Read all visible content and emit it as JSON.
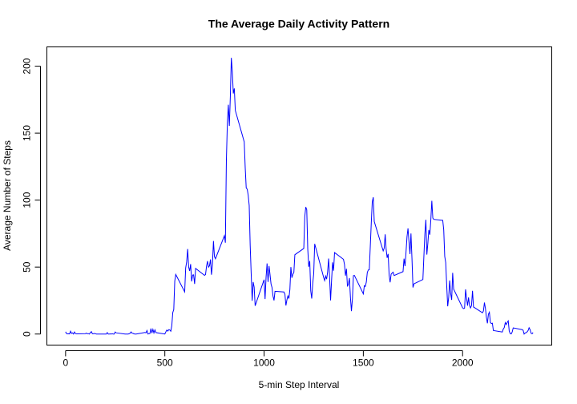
{
  "chart_data": {
    "type": "line",
    "title": "The Average Daily Activity Pattern",
    "x_label": "5-min Step Interval",
    "y_label": "Average Number of Steps",
    "xlim": [
      -94.2,
      2449.2
    ],
    "ylim": [
      -8.25,
      214.4
    ],
    "xticks": [
      0,
      500,
      1000,
      1500,
      2000
    ],
    "yticks": [
      0,
      50,
      100,
      150,
      200
    ],
    "grid": false,
    "x": [
      0,
      5,
      10,
      15,
      20,
      25,
      30,
      35,
      40,
      45,
      50,
      55,
      100,
      105,
      110,
      115,
      120,
      125,
      130,
      135,
      140,
      145,
      150,
      155,
      200,
      205,
      210,
      215,
      220,
      225,
      230,
      235,
      240,
      245,
      250,
      255,
      300,
      305,
      310,
      315,
      320,
      325,
      330,
      335,
      340,
      345,
      350,
      355,
      400,
      405,
      410,
      415,
      420,
      425,
      430,
      435,
      440,
      445,
      450,
      455,
      500,
      505,
      510,
      515,
      520,
      525,
      530,
      535,
      540,
      545,
      550,
      555,
      600,
      605,
      610,
      615,
      620,
      625,
      630,
      635,
      640,
      645,
      650,
      655,
      700,
      705,
      710,
      715,
      720,
      725,
      730,
      735,
      740,
      745,
      750,
      755,
      800,
      805,
      810,
      815,
      820,
      825,
      830,
      835,
      840,
      845,
      850,
      855,
      900,
      905,
      910,
      915,
      920,
      925,
      930,
      935,
      940,
      945,
      950,
      955,
      1000,
      1005,
      1010,
      1015,
      1020,
      1025,
      1030,
      1035,
      1040,
      1045,
      1050,
      1055,
      1100,
      1105,
      1110,
      1115,
      1120,
      1125,
      1130,
      1135,
      1140,
      1145,
      1150,
      1155,
      1200,
      1205,
      1210,
      1215,
      1220,
      1225,
      1230,
      1235,
      1240,
      1245,
      1250,
      1255,
      1300,
      1305,
      1310,
      1315,
      1320,
      1325,
      1330,
      1335,
      1340,
      1345,
      1350,
      1355,
      1400,
      1405,
      1410,
      1415,
      1420,
      1425,
      1430,
      1435,
      1440,
      1445,
      1450,
      1455,
      1500,
      1505,
      1510,
      1515,
      1520,
      1525,
      1530,
      1535,
      1540,
      1545,
      1550,
      1555,
      1600,
      1605,
      1610,
      1615,
      1620,
      1625,
      1630,
      1635,
      1640,
      1645,
      1650,
      1655,
      1700,
      1705,
      1710,
      1715,
      1720,
      1725,
      1730,
      1735,
      1740,
      1745,
      1750,
      1755,
      1800,
      1805,
      1810,
      1815,
      1820,
      1825,
      1830,
      1835,
      1840,
      1845,
      1850,
      1855,
      1900,
      1905,
      1910,
      1915,
      1920,
      1925,
      1930,
      1935,
      1940,
      1945,
      1950,
      1955,
      2000,
      2005,
      2010,
      2015,
      2020,
      2025,
      2030,
      2035,
      2040,
      2045,
      2050,
      2055,
      2100,
      2105,
      2110,
      2115,
      2120,
      2125,
      2130,
      2135,
      2140,
      2145,
      2150,
      2155,
      2200,
      2205,
      2210,
      2215,
      2220,
      2225,
      2230,
      2235,
      2240,
      2245,
      2250,
      2255,
      2300,
      2305,
      2310,
      2315,
      2320,
      2325,
      2330,
      2335,
      2340,
      2345,
      2350,
      2355
    ],
    "series": [
      {
        "name": "steps",
        "color": "#0000ff",
        "values": [
          1.7,
          0.3,
          0.1,
          0.2,
          0.1,
          2.1,
          0.5,
          0.9,
          0,
          1.5,
          0.3,
          0.1,
          0.3,
          0.7,
          0.2,
          0.3,
          0,
          1.1,
          1.8,
          0.2,
          0.2,
          0.4,
          0.3,
          0,
          0,
          0,
          1.1,
          0,
          0,
          0.1,
          0,
          0.2,
          0,
          0,
          1.5,
          0.9,
          0,
          0,
          0,
          0,
          0.2,
          0.6,
          1.6,
          0.6,
          0.5,
          0.1,
          0,
          0,
          1.2,
          0.9,
          2.6,
          0,
          0.3,
          0.4,
          4.1,
          0.7,
          3.5,
          0.8,
          3.1,
          1.1,
          0,
          1.6,
          3,
          2.2,
          3.3,
          3,
          2.1,
          6.1,
          16,
          18.3,
          39.5,
          44.5,
          31.5,
          49.3,
          53.8,
          63.5,
          50,
          47.1,
          52.2,
          39.3,
          44,
          44.2,
          37.4,
          49,
          43.8,
          44.4,
          50.5,
          54.5,
          49.9,
          51,
          55.7,
          44.3,
          52.3,
          69.5,
          57.8,
          56.2,
          73.4,
          68.2,
          129.4,
          157.5,
          171.2,
          155.4,
          177.3,
          206.2,
          195.9,
          179.6,
          183.4,
          167,
          143.5,
          124,
          109.1,
          108.1,
          103.7,
          96,
          66.2,
          45.2,
          24.8,
          38.8,
          35,
          21.1,
          40.6,
          26.1,
          42.4,
          52.7,
          38.9,
          50.8,
          44.3,
          37.4,
          34.7,
          28.3,
          25.1,
          31.9,
          31.4,
          29.7,
          21.3,
          25.5,
          28.4,
          26.5,
          33.4,
          50,
          42,
          44.6,
          46,
          59.2,
          63.9,
          87.7,
          94.8,
          92.8,
          63.4,
          50.2,
          54.5,
          32.4,
          26.5,
          37.7,
          45,
          67.3,
          42.3,
          39.9,
          43.3,
          41,
          46.2,
          56.4,
          42.8,
          25.1,
          40,
          53.5,
          47.3,
          60.8,
          55.8,
          52,
          43.6,
          48.7,
          35.5,
          37.5,
          41.8,
          27.5,
          17.1,
          26.1,
          43.6,
          43.8,
          30,
          36.1,
          35.5,
          38.8,
          46,
          47.8,
          48.1,
          65.3,
          82.9,
          98.7,
          102.1,
          84,
          62.1,
          64.1,
          74.5,
          63.2,
          56.9,
          59.8,
          43.9,
          38.6,
          44.7,
          45.5,
          46.2,
          43.7,
          46.6,
          56.3,
          50.7,
          61.2,
          72.7,
          78.9,
          68.9,
          59.7,
          75.1,
          56.5,
          34.8,
          37.5,
          40.7,
          58,
          74.7,
          85.3,
          59.3,
          67.8,
          77.7,
          74.2,
          85.3,
          99.5,
          86.6,
          85.6,
          84.9,
          77.8,
          58,
          53.4,
          36.3,
          20.7,
          27.4,
          40,
          30.2,
          25.5,
          45.7,
          33.5,
          19.6,
          19,
          19.3,
          33.3,
          26.8,
          21.2,
          27.3,
          21.3,
          19.5,
          21.3,
          32.3,
          20.2,
          15.9,
          17.2,
          23.5,
          19.2,
          12.5,
          8,
          14.7,
          16.3,
          8.7,
          7.8,
          8.1,
          2.6,
          1.5,
          3.7,
          4.8,
          8.5,
          7.1,
          8.7,
          9.8,
          2.2,
          0.3,
          0.1,
          1.6,
          4.6,
          3.3,
          2.8,
          0,
          0.8,
          1,
          1.6,
          2.6,
          4.7,
          3.3,
          0.6,
          0.2,
          1.1
        ]
      }
    ]
  }
}
